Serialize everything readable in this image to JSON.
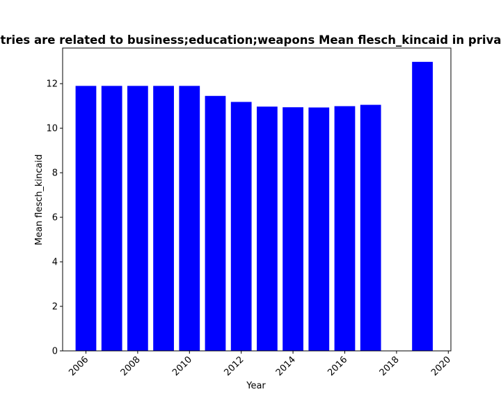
{
  "chart_data": {
    "type": "bar",
    "title": "Entries are related to business;education;weapons Mean flesch_kincaid in privacy p",
    "xlabel": "Year",
    "ylabel": "Mean flesch_kincaid",
    "x": [
      2006,
      2007,
      2008,
      2009,
      2010,
      2011,
      2012,
      2013,
      2014,
      2015,
      2016,
      2017,
      2019
    ],
    "values": [
      11.9,
      11.9,
      11.9,
      11.9,
      11.9,
      11.45,
      11.18,
      10.97,
      10.94,
      10.93,
      10.99,
      11.05,
      12.98
    ],
    "xlim": [
      2005.1,
      2020.1
    ],
    "ylim": [
      0,
      13.6
    ],
    "xticks": [
      "2006",
      "2008",
      "2010",
      "2012",
      "2014",
      "2016",
      "2018",
      "2020"
    ],
    "yticks": [
      "0",
      "2",
      "4",
      "6",
      "8",
      "10",
      "12"
    ],
    "bar_color": "#0000ff",
    "grid": false,
    "legend": "none"
  }
}
